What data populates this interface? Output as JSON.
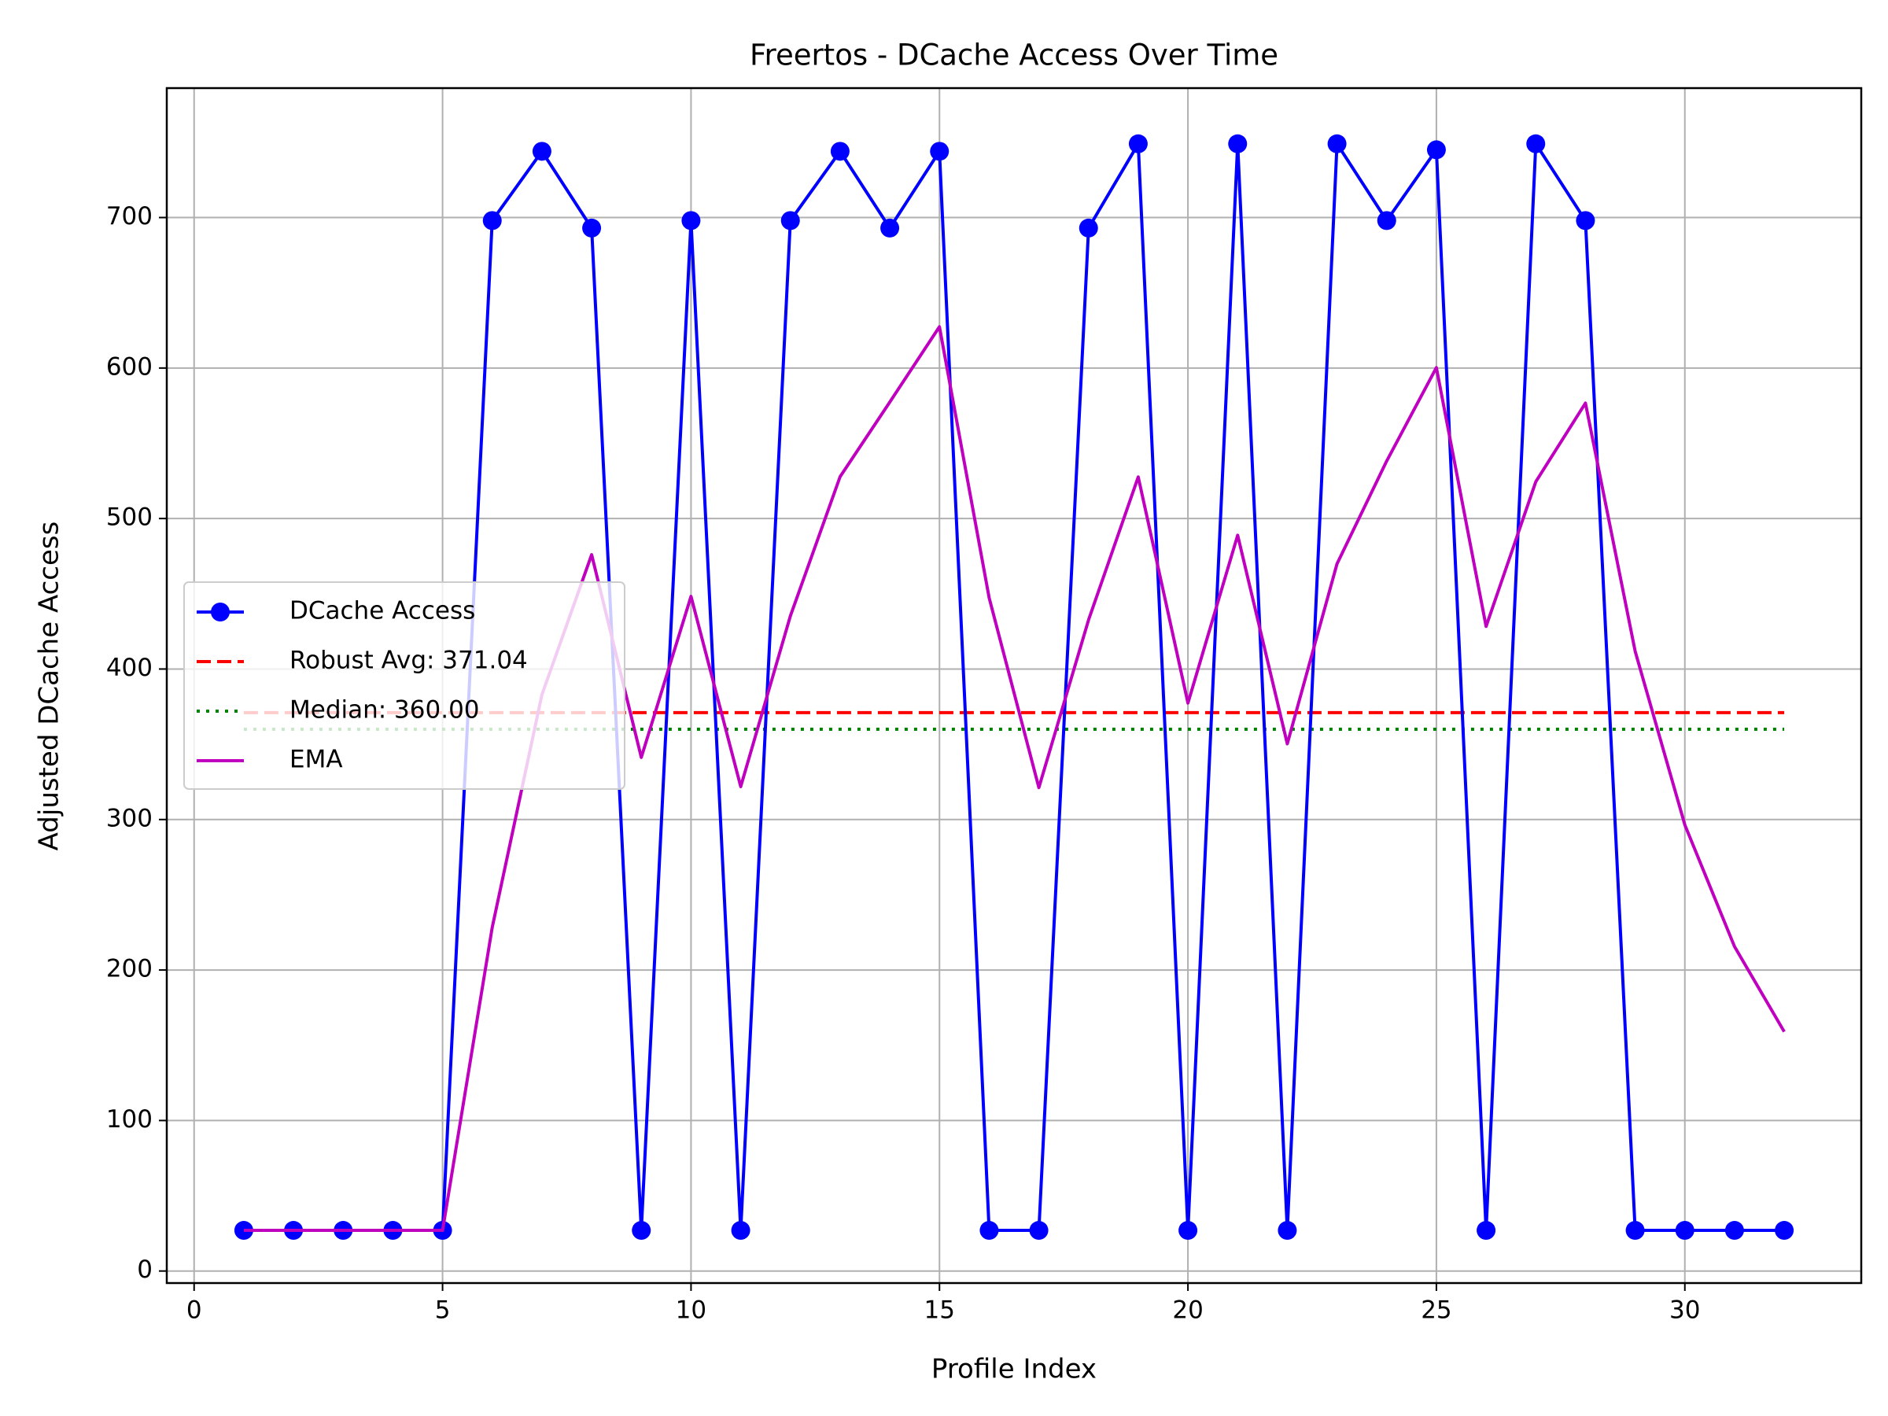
{
  "chart_data": {
    "type": "line",
    "title": "Freertos - DCache Access Over Time",
    "xlabel": "Profile Index",
    "ylabel": "Adjusted DCache Access",
    "x": [
      1,
      2,
      3,
      4,
      5,
      6,
      7,
      8,
      9,
      10,
      11,
      12,
      13,
      14,
      15,
      16,
      17,
      18,
      19,
      20,
      21,
      22,
      23,
      24,
      25,
      26,
      27,
      28,
      29,
      30,
      31,
      32
    ],
    "series": [
      {
        "name": "DCache Access",
        "color": "#0000ff",
        "marker": true,
        "values": [
          27,
          27,
          27,
          27,
          27,
          698,
          744,
          693,
          27,
          698,
          27,
          698,
          744,
          693,
          744,
          27,
          27,
          693,
          749,
          27,
          749,
          27,
          749,
          698,
          745,
          27,
          749,
          698,
          27,
          27,
          27,
          27
        ]
      },
      {
        "name": "EMA",
        "color": "#bf00bf",
        "marker": false,
        "values": [
          27,
          27,
          27,
          27,
          27,
          228.3,
          383.0,
          476.0,
          341.3,
          448.3,
          321.9,
          435.2,
          527.8,
          577.4,
          627.4,
          447.3,
          321.2,
          432.7,
          527.6,
          377.4,
          488.9,
          350.3,
          469.9,
          538.3,
          600.3,
          428.3,
          524.5,
          576.7,
          411.8,
          296.4,
          215.6,
          159.0
        ]
      }
    ],
    "hlines": [
      {
        "name": "Robust Avg: 371.04",
        "value": 371.04,
        "color": "#ff0000",
        "dash": "dashed"
      },
      {
        "name": "Median: 360.00",
        "value": 360,
        "color": "#008000",
        "dash": "dotted"
      }
    ],
    "xlim": [
      -0.55,
      33.55
    ],
    "ylim": [
      -8,
      786
    ],
    "xticks": [
      0,
      5,
      10,
      15,
      20,
      25,
      30
    ],
    "yticks": [
      0,
      100,
      200,
      300,
      400,
      500,
      600,
      700
    ],
    "grid": true,
    "legend": "center left"
  }
}
